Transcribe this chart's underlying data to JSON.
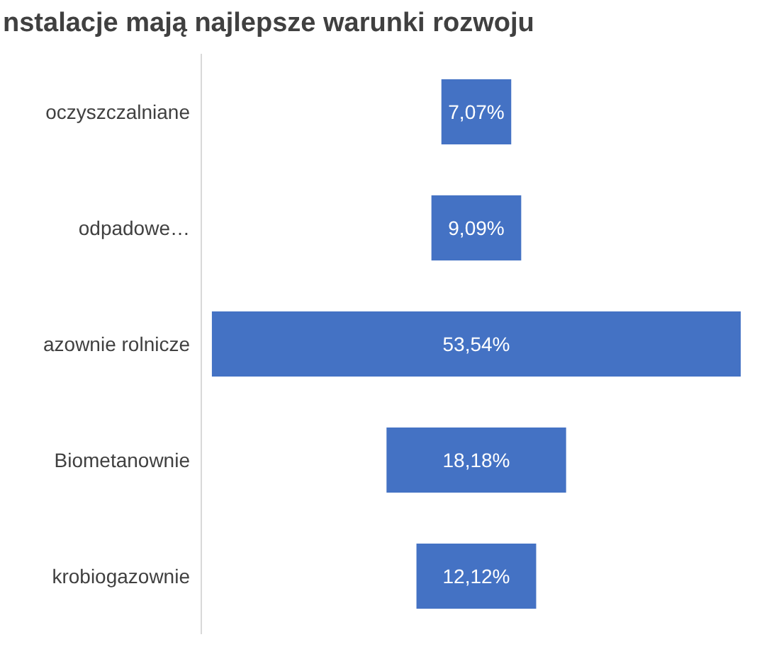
{
  "chart_data": {
    "type": "other",
    "title": "nstalacje mają  najlepsze warunki rozwoju",
    "categories": [
      "oczyszczalniane",
      "odpadowe…",
      "azownie rolnicze",
      "Biometanownie",
      "krobiogazownie"
    ],
    "values": [
      7.07,
      9.09,
      53.54,
      18.18,
      12.12
    ],
    "value_labels": [
      "7,07%",
      "9,09%",
      "53,54%",
      "18,18%",
      "12,12%"
    ],
    "color": "#4472c4"
  }
}
